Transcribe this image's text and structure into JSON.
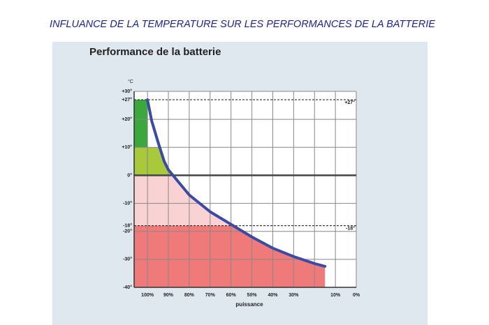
{
  "page_title": "INFLUANCE DE LA TEMPERATURE SUR LES PERFORMANCES DE LA BATTERIE",
  "chart_data": {
    "type": "line",
    "title": "Performance de la batterie",
    "y_unit": "°C",
    "xlabel": "puissance",
    "x": [
      100,
      98,
      95,
      92,
      90,
      80,
      70,
      60,
      50,
      40,
      30,
      20,
      15
    ],
    "series": [
      {
        "color": "#3b4aa6",
        "values": [
          27,
          19.5,
          12,
          5,
          2,
          -7,
          -13,
          -17.5,
          -22,
          -26,
          -29,
          -31.5,
          -32.5
        ]
      }
    ],
    "xlim": [
      106.4,
      0
    ],
    "ylim": [
      -40,
      30
    ],
    "xticks": [
      {
        "value": 100,
        "label": "100%"
      },
      {
        "value": 90,
        "label": "90%"
      },
      {
        "value": 80,
        "label": "80%"
      },
      {
        "value": 70,
        "label": "70%"
      },
      {
        "value": 60,
        "label": "60%"
      },
      {
        "value": 50,
        "label": "50%"
      },
      {
        "value": 40,
        "label": "40%"
      },
      {
        "value": 30,
        "label": "30%"
      },
      {
        "value": 20,
        "label": null
      },
      {
        "value": 10,
        "label": "10%"
      },
      {
        "value": 0,
        "label": "0%"
      }
    ],
    "yticks": [
      {
        "value": 30,
        "label": "+30°"
      },
      {
        "value": 27,
        "label": "+27°"
      },
      {
        "value": 20,
        "label": "+20°"
      },
      {
        "value": 10,
        "label": "+10°"
      },
      {
        "value": 0,
        "label": "0°"
      },
      {
        "value": -10,
        "label": "-10°"
      },
      {
        "value": -18,
        "label": "-18°"
      },
      {
        "value": -20,
        "label": "-20°"
      },
      {
        "value": -30,
        "label": "-30°"
      },
      {
        "value": -40,
        "label": "-40°"
      }
    ],
    "reference_lines": [
      {
        "value": 27,
        "label": "+27°"
      },
      {
        "value": -18,
        "label": "-18°"
      }
    ],
    "bands": [
      {
        "from": 27,
        "to": 10,
        "color": "#3aa83a"
      },
      {
        "from": 10,
        "to": 0,
        "color": "#a9c83c"
      },
      {
        "from": 0,
        "to": -18,
        "color": "#f9d3d3"
      },
      {
        "from": -18,
        "to": -40,
        "color": "#f07a7a"
      }
    ],
    "grid": true
  }
}
